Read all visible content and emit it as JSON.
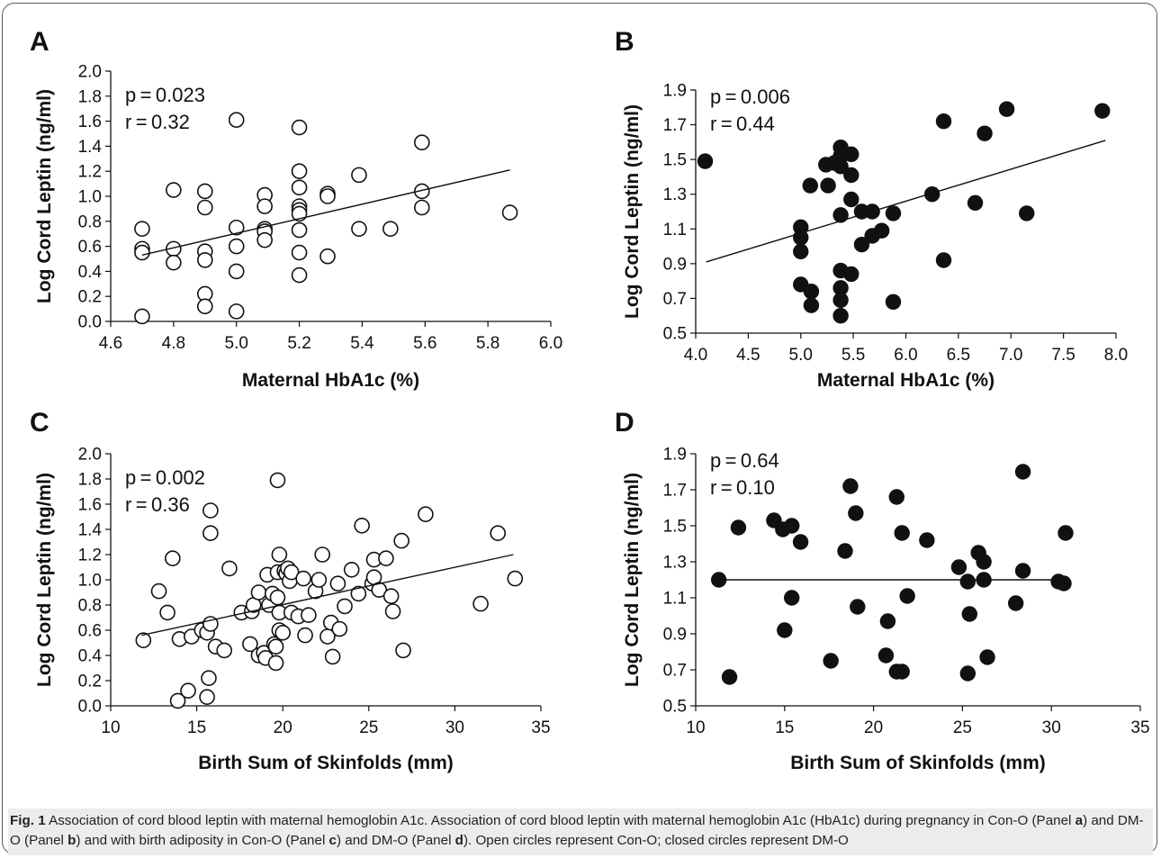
{
  "chart_data": [
    {
      "panel": "A",
      "type": "scatter",
      "marker": "open-circle",
      "xlabel": "Maternal HbA1c (%)",
      "ylabel": "Log Cord Leptin (ng/ml)",
      "xlim": [
        4.6,
        6.0
      ],
      "ylim": [
        0.0,
        2.0
      ],
      "xticks": [
        "4.6",
        "4.8",
        "5.0",
        "5.2",
        "5.4",
        "5.6",
        "5.8",
        "6.0"
      ],
      "yticks": [
        "0.0",
        "0.2",
        "0.4",
        "0.6",
        "0.8",
        "1.0",
        "1.2",
        "1.4",
        "1.6",
        "1.8",
        "2.0"
      ],
      "annotations": [
        "p = 0.023",
        "r = 0.32"
      ],
      "trendline": {
        "x": [
          4.7,
          5.87
        ],
        "y": [
          0.53,
          1.21
        ]
      },
      "points": [
        [
          4.7,
          0.74
        ],
        [
          4.7,
          0.58
        ],
        [
          4.7,
          0.55
        ],
        [
          4.7,
          0.04
        ],
        [
          4.8,
          1.05
        ],
        [
          4.8,
          0.58
        ],
        [
          4.8,
          0.47
        ],
        [
          4.9,
          1.04
        ],
        [
          4.9,
          0.91
        ],
        [
          4.9,
          0.56
        ],
        [
          4.9,
          0.49
        ],
        [
          4.9,
          0.22
        ],
        [
          4.9,
          0.12
        ],
        [
          5.0,
          1.61
        ],
        [
          5.0,
          0.75
        ],
        [
          5.0,
          0.6
        ],
        [
          5.0,
          0.4
        ],
        [
          5.0,
          0.08
        ],
        [
          5.09,
          1.01
        ],
        [
          5.09,
          0.92
        ],
        [
          5.09,
          0.74
        ],
        [
          5.09,
          0.72
        ],
        [
          5.09,
          0.65
        ],
        [
          5.2,
          1.55
        ],
        [
          5.2,
          1.2
        ],
        [
          5.2,
          1.07
        ],
        [
          5.2,
          0.92
        ],
        [
          5.2,
          0.89
        ],
        [
          5.2,
          0.86
        ],
        [
          5.2,
          0.73
        ],
        [
          5.2,
          0.55
        ],
        [
          5.2,
          0.37
        ],
        [
          5.29,
          1.02
        ],
        [
          5.29,
          1.0
        ],
        [
          5.29,
          0.52
        ],
        [
          5.39,
          1.17
        ],
        [
          5.39,
          0.74
        ],
        [
          5.49,
          0.74
        ],
        [
          5.59,
          1.43
        ],
        [
          5.59,
          1.04
        ],
        [
          5.59,
          0.91
        ],
        [
          5.87,
          0.87
        ]
      ]
    },
    {
      "panel": "B",
      "type": "scatter",
      "marker": "filled-circle",
      "xlabel": "Maternal HbA1c (%)",
      "ylabel": "Log Cord Leptin (ng/ml)",
      "xlim": [
        4.0,
        8.0
      ],
      "ylim": [
        0.5,
        1.9
      ],
      "xticks": [
        "4.0",
        "4.5",
        "5.0",
        "5.5",
        "6.0",
        "6.5",
        "7.0",
        "7.5",
        "8.0"
      ],
      "yticks": [
        "0.5",
        "0.7",
        "0.9",
        "1.1",
        "1.3",
        "1.5",
        "1.7",
        "1.9"
      ],
      "annotations": [
        "p = 0.006",
        "r = 0.44"
      ],
      "trendline": {
        "x": [
          4.1,
          7.9
        ],
        "y": [
          0.91,
          1.61
        ]
      },
      "points": [
        [
          4.09,
          1.49
        ],
        [
          5.0,
          1.11
        ],
        [
          5.0,
          1.05
        ],
        [
          5.0,
          0.97
        ],
        [
          5.0,
          0.78
        ],
        [
          5.09,
          1.35
        ],
        [
          5.1,
          0.74
        ],
        [
          5.1,
          0.66
        ],
        [
          5.24,
          1.47
        ],
        [
          5.26,
          1.35
        ],
        [
          5.32,
          1.48
        ],
        [
          5.38,
          1.57
        ],
        [
          5.38,
          1.52
        ],
        [
          5.38,
          1.46
        ],
        [
          5.38,
          1.18
        ],
        [
          5.38,
          0.86
        ],
        [
          5.38,
          0.76
        ],
        [
          5.38,
          0.69
        ],
        [
          5.38,
          0.6
        ],
        [
          5.48,
          1.53
        ],
        [
          5.48,
          1.41
        ],
        [
          5.48,
          1.27
        ],
        [
          5.48,
          0.84
        ],
        [
          5.58,
          1.2
        ],
        [
          5.58,
          1.01
        ],
        [
          5.68,
          1.2
        ],
        [
          5.68,
          1.06
        ],
        [
          5.77,
          1.09
        ],
        [
          5.88,
          1.19
        ],
        [
          5.88,
          0.68
        ],
        [
          6.25,
          1.3
        ],
        [
          6.36,
          1.72
        ],
        [
          6.36,
          0.92
        ],
        [
          6.66,
          1.25
        ],
        [
          6.75,
          1.65
        ],
        [
          6.96,
          1.79
        ],
        [
          7.15,
          1.19
        ],
        [
          7.87,
          1.78
        ]
      ]
    },
    {
      "panel": "C",
      "type": "scatter",
      "marker": "open-circle",
      "xlabel": "Birth Sum of Skinfolds (mm)",
      "ylabel": "Log Cord Leptin (ng/ml)",
      "xlim": [
        10,
        35
      ],
      "ylim": [
        0.0,
        2.0
      ],
      "xticks": [
        "10",
        "15",
        "20",
        "25",
        "30",
        "35"
      ],
      "yticks": [
        "0.0",
        "0.2",
        "0.4",
        "0.6",
        "0.8",
        "1.0",
        "1.2",
        "1.4",
        "1.6",
        "1.8",
        "2.0"
      ],
      "annotations": [
        "p = 0.002",
        "r = 0.36"
      ],
      "trendline": {
        "x": [
          11.8,
          33.4
        ],
        "y": [
          0.56,
          1.2
        ]
      },
      "points": [
        [
          11.9,
          0.52
        ],
        [
          12.8,
          0.91
        ],
        [
          13.3,
          0.74
        ],
        [
          13.6,
          1.17
        ],
        [
          14.0,
          0.53
        ],
        [
          13.9,
          0.04
        ],
        [
          14.5,
          0.12
        ],
        [
          14.7,
          0.55
        ],
        [
          15.3,
          0.6
        ],
        [
          15.6,
          0.58
        ],
        [
          15.8,
          1.55
        ],
        [
          15.8,
          1.37
        ],
        [
          15.8,
          0.65
        ],
        [
          15.7,
          0.22
        ],
        [
          15.6,
          0.07
        ],
        [
          16.1,
          0.47
        ],
        [
          16.6,
          0.44
        ],
        [
          16.9,
          1.09
        ],
        [
          17.6,
          0.74
        ],
        [
          18.1,
          0.49
        ],
        [
          18.2,
          0.75
        ],
        [
          18.3,
          0.8
        ],
        [
          18.6,
          0.9
        ],
        [
          18.6,
          0.4
        ],
        [
          18.9,
          0.42
        ],
        [
          19.0,
          0.38
        ],
        [
          19.1,
          1.04
        ],
        [
          19.2,
          0.8
        ],
        [
          19.4,
          0.89
        ],
        [
          19.5,
          0.49
        ],
        [
          19.6,
          0.47
        ],
        [
          19.6,
          0.34
        ],
        [
          19.7,
          1.79
        ],
        [
          19.7,
          1.06
        ],
        [
          19.7,
          0.86
        ],
        [
          19.8,
          0.74
        ],
        [
          19.8,
          0.6
        ],
        [
          19.8,
          1.2
        ],
        [
          20.0,
          0.58
        ],
        [
          20.1,
          1.07
        ],
        [
          20.2,
          1.05
        ],
        [
          20.3,
          1.09
        ],
        [
          20.4,
          0.99
        ],
        [
          20.5,
          1.06
        ],
        [
          20.5,
          0.74
        ],
        [
          20.9,
          0.71
        ],
        [
          21.2,
          1.01
        ],
        [
          21.3,
          0.56
        ],
        [
          21.5,
          0.72
        ],
        [
          21.9,
          0.91
        ],
        [
          22.1,
          1.0
        ],
        [
          22.3,
          1.2
        ],
        [
          22.6,
          0.55
        ],
        [
          22.8,
          0.66
        ],
        [
          22.9,
          0.39
        ],
        [
          23.2,
          0.97
        ],
        [
          23.3,
          0.61
        ],
        [
          23.6,
          0.79
        ],
        [
          24.0,
          1.08
        ],
        [
          24.4,
          0.89
        ],
        [
          24.6,
          1.43
        ],
        [
          25.2,
          0.97
        ],
        [
          25.3,
          1.02
        ],
        [
          25.3,
          1.16
        ],
        [
          25.6,
          0.92
        ],
        [
          26.0,
          1.17
        ],
        [
          26.3,
          0.87
        ],
        [
          26.4,
          0.75
        ],
        [
          26.9,
          1.31
        ],
        [
          27.0,
          0.44
        ],
        [
          28.3,
          1.52
        ],
        [
          31.5,
          0.81
        ],
        [
          32.5,
          1.37
        ],
        [
          33.5,
          1.01
        ]
      ]
    },
    {
      "panel": "D",
      "type": "scatter",
      "marker": "filled-circle",
      "xlabel": "Birth Sum of Skinfolds (mm)",
      "ylabel": "Log Cord Leptin (ng/ml)",
      "xlim": [
        10,
        35
      ],
      "ylim": [
        0.5,
        1.9
      ],
      "xticks": [
        "10",
        "15",
        "20",
        "25",
        "30",
        "35"
      ],
      "yticks": [
        "0.5",
        "0.7",
        "0.9",
        "1.1",
        "1.3",
        "1.5",
        "1.7",
        "1.9"
      ],
      "annotations": [
        "p = 0.64",
        "r = 0.10"
      ],
      "trendline": {
        "x": [
          11.3,
          30.6
        ],
        "y": [
          1.2,
          1.2
        ]
      },
      "points": [
        [
          11.3,
          1.2
        ],
        [
          11.9,
          0.66
        ],
        [
          12.4,
          1.49
        ],
        [
          14.4,
          1.53
        ],
        [
          14.9,
          1.48
        ],
        [
          15.0,
          0.92
        ],
        [
          15.4,
          1.5
        ],
        [
          15.4,
          1.1
        ],
        [
          15.9,
          1.41
        ],
        [
          17.6,
          0.75
        ],
        [
          18.4,
          1.36
        ],
        [
          18.7,
          1.72
        ],
        [
          19.0,
          1.57
        ],
        [
          19.1,
          1.05
        ],
        [
          20.7,
          0.78
        ],
        [
          20.8,
          0.97
        ],
        [
          21.3,
          1.66
        ],
        [
          21.3,
          0.69
        ],
        [
          21.6,
          1.46
        ],
        [
          21.6,
          0.69
        ],
        [
          21.9,
          1.11
        ],
        [
          23.0,
          1.42
        ],
        [
          24.8,
          1.27
        ],
        [
          25.3,
          0.68
        ],
        [
          25.3,
          1.19
        ],
        [
          25.4,
          1.01
        ],
        [
          25.9,
          1.35
        ],
        [
          26.2,
          1.3
        ],
        [
          26.2,
          1.2
        ],
        [
          26.4,
          0.77
        ],
        [
          28.0,
          1.07
        ],
        [
          28.4,
          1.8
        ],
        [
          28.4,
          1.25
        ],
        [
          30.4,
          1.19
        ],
        [
          30.7,
          1.18
        ],
        [
          30.8,
          1.46
        ]
      ]
    }
  ],
  "caption": {
    "fig_label": "Fig. 1",
    "title": "Association of cord blood leptin with maternal hemoglobin A1c.",
    "text_1": "Association of cord blood leptin with maternal hemoglobin A1c (HbA1c) during pregnancy in Con-O (Panel ",
    "panel_a": "a",
    "text_2": ") and DM-O (Panel ",
    "panel_b": "b",
    "text_3": ") and with birth adiposity in Con-O (Panel ",
    "panel_c": "c",
    "text_4": ") and DM-O (Panel ",
    "panel_d": "d",
    "text_5": "). Open circles represent Con-O; closed circles represent DM-O"
  }
}
